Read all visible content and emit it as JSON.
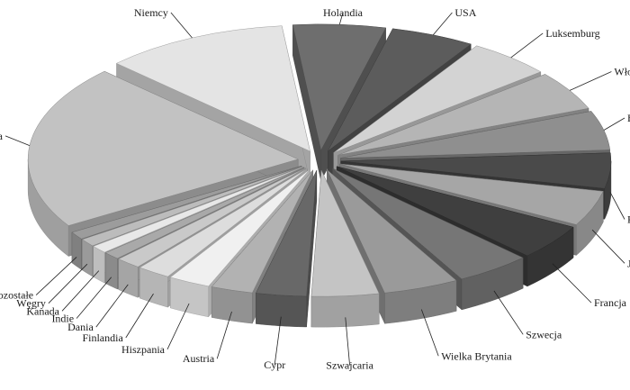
{
  "chart_data": {
    "type": "pie",
    "title": "",
    "style": "3d-exploded",
    "slices": [
      {
        "label": "Holandia",
        "value": 5.5,
        "color": "#6e6e6e"
      },
      {
        "label": "USA",
        "value": 5.0,
        "color": "#5c5c5c"
      },
      {
        "label": "Luksemburg",
        "value": 5.0,
        "color": "#d3d3d3"
      },
      {
        "label": "Włochy",
        "value": 5.0,
        "color": "#b5b5b5"
      },
      {
        "label": "Belgia",
        "value": 5.0,
        "color": "#8f8f8f"
      },
      {
        "label": "Korea Płd.",
        "value": 4.5,
        "color": "#4a4a4a"
      },
      {
        "label": "Japonia",
        "value": 4.5,
        "color": "#a6a6a6"
      },
      {
        "label": "Francja",
        "value": 4.5,
        "color": "#3f3f3f"
      },
      {
        "label": "Szwecja",
        "value": 4.5,
        "color": "#767676"
      },
      {
        "label": "Wielka Brytania",
        "value": 4.5,
        "color": "#9a9a9a"
      },
      {
        "label": "Szwajcaria",
        "value": 4.0,
        "color": "#c4c4c4"
      },
      {
        "label": "Cypr",
        "value": 3.0,
        "color": "#686868"
      },
      {
        "label": "Austria",
        "value": 2.5,
        "color": "#b2b2b2"
      },
      {
        "label": "Hiszpania",
        "value": 2.5,
        "color": "#f0f0f0"
      },
      {
        "label": "Finlandia",
        "value": 2.0,
        "color": "#dddddd"
      },
      {
        "label": "Dania",
        "value": 1.5,
        "color": "#c9c9c9"
      },
      {
        "label": "Indie",
        "value": 1.0,
        "color": "#a9a9a9"
      },
      {
        "label": "Kanada",
        "value": 1.0,
        "color": "#e8e8e8"
      },
      {
        "label": "Węgry",
        "value": 1.0,
        "color": "#bcbcbc"
      },
      {
        "label": "Pozostałe",
        "value": 1.0,
        "color": "#9c9c9c"
      },
      {
        "label": "Polska",
        "value": 21.0,
        "color": "#c2c2c2"
      },
      {
        "label": "Niemcy",
        "value": 11.0,
        "color": "#e4e4e4"
      }
    ]
  }
}
